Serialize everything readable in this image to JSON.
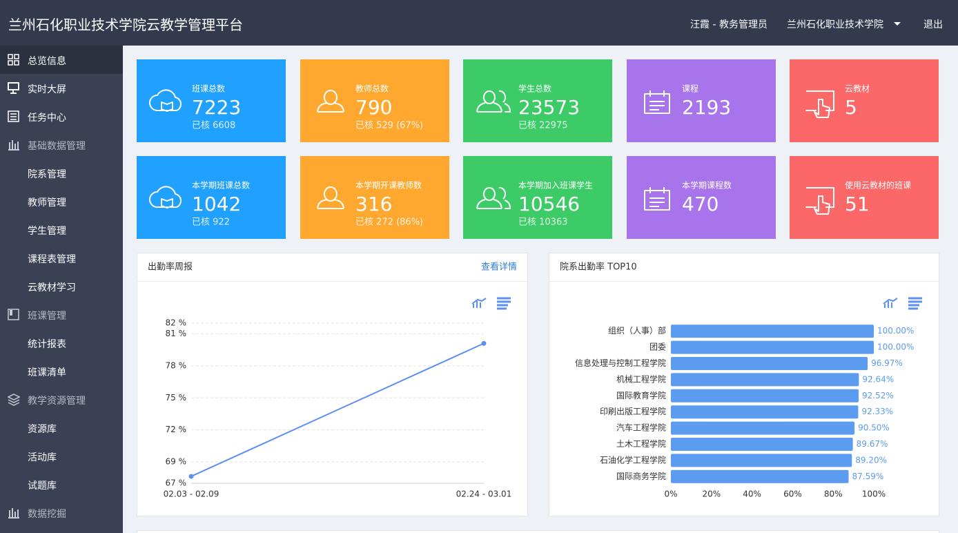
{
  "header": {
    "title": "兰州石化职业技术学院云教学管理平台",
    "user": "汪霞 - 教务管理员",
    "school": "兰州石化职业技术学院",
    "logout": "退出"
  },
  "sidebar": {
    "items": [
      "总览信息",
      "实时大屏",
      "任务中心",
      "基础数据管理",
      "院系管理",
      "教师管理",
      "学生管理",
      "课程表管理",
      "云教材学习",
      "班课管理",
      "统计报表",
      "班课清单",
      "教学资源管理",
      "资源库",
      "活动库",
      "试题库",
      "数据挖掘"
    ]
  },
  "cards": [
    {
      "label": "班课总数",
      "value": 7223,
      "sub": "已核 6608",
      "color": "#20a0ff"
    },
    {
      "label": "教师总数",
      "value": 790,
      "sub": "已核 529 (67%)",
      "color": "#ffa82f"
    },
    {
      "label": "学生总数",
      "value": 23573,
      "sub": "已核 22975",
      "color": "#3dcb68"
    },
    {
      "label": "课程",
      "value": 2193,
      "color": "#a774ec"
    },
    {
      "label": "云教材",
      "value": 5,
      "color": "#fc6767"
    },
    {
      "label": "本学期班课总数",
      "value": 1042,
      "sub": "已核 922",
      "color": "#20a0ff"
    },
    {
      "label": "本学期开课教师数",
      "value": 316,
      "sub": "已核 272 (86%)",
      "color": "#ffa82f"
    },
    {
      "label": "本学期加入班课学生",
      "value": 10546,
      "sub": "已核 10363",
      "color": "#3dcb68"
    },
    {
      "label": "本学期课程数",
      "value": 470,
      "color": "#a774ec"
    },
    {
      "label": "使用云教材的班课",
      "value": 51,
      "color": "#fc6767"
    }
  ],
  "chart_data": [
    {
      "type": "line",
      "title": "出勤率周报",
      "link": "查看详情",
      "categories": [
        "02.03 - 02.09",
        "02.24 - 03.01"
      ],
      "values": [
        67.65,
        80.1
      ],
      "color": "#5b8ff0",
      "ylim": [
        67,
        82
      ],
      "yticks": [
        {
          "value": 67,
          "label": "67 %"
        },
        {
          "value": 69,
          "label": "69 %"
        },
        {
          "value": 72,
          "label": "72 %"
        },
        {
          "value": 75,
          "label": "75 %"
        },
        {
          "value": 78,
          "label": "78 %"
        },
        {
          "value": 81,
          "label": "81 %"
        },
        {
          "value": 82,
          "label": "82 %"
        }
      ],
      "grid": true
    },
    {
      "type": "hbar",
      "title": "院系出勤率 TOP10",
      "categories": [
        "组织（人事）部",
        "团委",
        "信息处理与控制工程学院",
        "机械工程学院",
        "国际教育学院",
        "印刷出版工程学院",
        "汽车工程学院",
        "土木工程学院",
        "石油化学工程学院",
        "国际商务学院"
      ],
      "values": [
        100,
        100,
        96.97,
        92.64,
        92.52,
        92.33,
        90.5,
        89.67,
        89.2,
        87.59
      ],
      "value_labels": [
        "100.00%",
        "100.00%",
        "96.97%",
        "92.64%",
        "92.52%",
        "92.33%",
        "90.50%",
        "89.67%",
        "89.20%",
        "87.59%"
      ],
      "color": "#5b9bf0",
      "xlim": [
        0,
        100
      ],
      "xticks": [
        {
          "value": 0,
          "label": "0%"
        },
        {
          "value": 20,
          "label": "20%"
        },
        {
          "value": 40,
          "label": "40%"
        },
        {
          "value": 60,
          "label": "60%"
        },
        {
          "value": 80,
          "label": "80%"
        },
        {
          "value": 100,
          "label": "100%"
        }
      ]
    }
  ]
}
